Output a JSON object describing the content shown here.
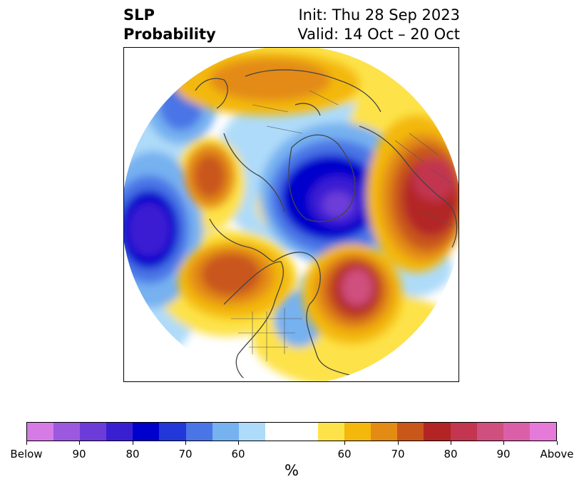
{
  "title": {
    "left_line1": "SLP",
    "left_line2": "Probability",
    "right_line1": "Init: Thu 28 Sep 2023",
    "right_line2": "Valid: 14 Oct – 20 Oct"
  },
  "colorbar": {
    "colors": [
      "#d67be6",
      "#9d58e0",
      "#6d3cd8",
      "#3a1fd2",
      "#0000cc",
      "#2238d8",
      "#4a75e6",
      "#76b1f0",
      "#aedbf9",
      "#ffffff",
      "#ffffff",
      "#fde24a",
      "#f3b80b",
      "#e38b12",
      "#c9571a",
      "#b32525",
      "#c23650",
      "#cf4f7e",
      "#db5fa8",
      "#e57ad8"
    ],
    "tick_labels": [
      "Below",
      "90",
      "80",
      "70",
      "60",
      "60",
      "70",
      "80",
      "90",
      "Above"
    ],
    "unit_label": "%"
  }
}
